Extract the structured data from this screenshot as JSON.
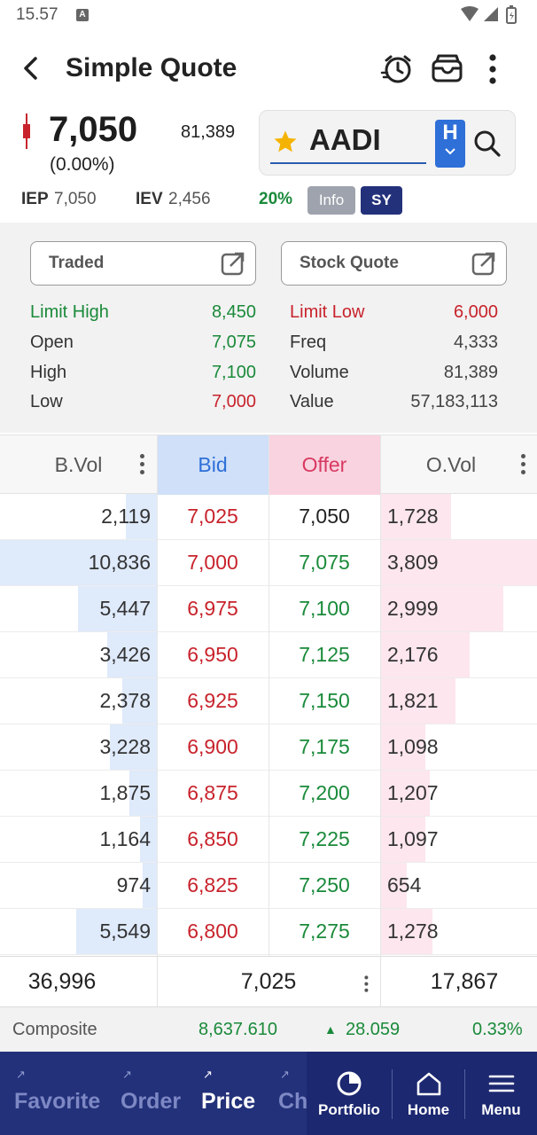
{
  "status_bar": {
    "time": "15.57",
    "notif_letter": "A"
  },
  "header": {
    "title": "Simple Quote"
  },
  "quote": {
    "last_price": "7,050",
    "change": "(0.00%)",
    "total_volume": "81,389",
    "symbol": "AADI",
    "board": "H",
    "iep_label": "IEP",
    "iep_value": "7,050",
    "iev_label": "IEV",
    "iev_value": "2,456",
    "limit_pct": "20%",
    "info_label": "Info",
    "sy_label": "SY"
  },
  "panel": {
    "traded_label": "Traded",
    "stock_quote_label": "Stock Quote",
    "left": [
      {
        "label": "Limit High",
        "value": "8,450"
      },
      {
        "label": "Open",
        "value": "7,075"
      },
      {
        "label": "High",
        "value": "7,100"
      },
      {
        "label": "Low",
        "value": "7,000"
      }
    ],
    "right": [
      {
        "label": "Limit Low",
        "value": "6,000"
      },
      {
        "label": "Freq",
        "value": "4,333"
      },
      {
        "label": "Volume",
        "value": "81,389"
      },
      {
        "label": "Value",
        "value": "57,183,113"
      }
    ]
  },
  "book": {
    "headers": {
      "bvol": "B.Vol",
      "bid": "Bid",
      "offer": "Offer",
      "ovol": "O.Vol"
    },
    "rows": [
      {
        "bvol": "2,119",
        "bid": "7,025",
        "offer": "7,050",
        "ovol": "1,728"
      },
      {
        "bvol": "10,836",
        "bid": "7,000",
        "offer": "7,075",
        "ovol": "3,809"
      },
      {
        "bvol": "5,447",
        "bid": "6,975",
        "offer": "7,100",
        "ovol": "2,999"
      },
      {
        "bvol": "3,426",
        "bid": "6,950",
        "offer": "7,125",
        "ovol": "2,176"
      },
      {
        "bvol": "2,378",
        "bid": "6,925",
        "offer": "7,150",
        "ovol": "1,821"
      },
      {
        "bvol": "3,228",
        "bid": "6,900",
        "offer": "7,175",
        "ovol": "1,098"
      },
      {
        "bvol": "1,875",
        "bid": "6,875",
        "offer": "7,200",
        "ovol": "1,207"
      },
      {
        "bvol": "1,164",
        "bid": "6,850",
        "offer": "7,225",
        "ovol": "1,097"
      },
      {
        "bvol": "974",
        "bid": "6,825",
        "offer": "7,250",
        "ovol": "654"
      },
      {
        "bvol": "5,549",
        "bid": "6,800",
        "offer": "7,275",
        "ovol": "1,278"
      }
    ],
    "totals": {
      "bvol": "36,996",
      "price": "7,025",
      "ovol": "17,867"
    }
  },
  "composite": {
    "label": "Composite",
    "value": "8,637.610",
    "change": "28.059",
    "pct": "0.33%"
  },
  "nav": {
    "tabs": [
      "Favorite",
      "Order",
      "Price",
      "Chart"
    ],
    "active_tab": "Price",
    "buttons": [
      "Portfolio",
      "Home",
      "Menu"
    ]
  },
  "colors": {
    "up": "#1a8a3a",
    "down": "#c8232c",
    "accent": "#2e6fd8",
    "nav_bg": "#23317a",
    "bid_bar": "#dfeafb",
    "offer_bar": "#fde6ee"
  },
  "icons": [
    "back-arrow-icon",
    "alarm-icon",
    "wallet-icon",
    "kebab-icon",
    "star-icon",
    "search-icon",
    "external-link-icon",
    "portfolio-icon",
    "home-icon",
    "menu-icon"
  ]
}
